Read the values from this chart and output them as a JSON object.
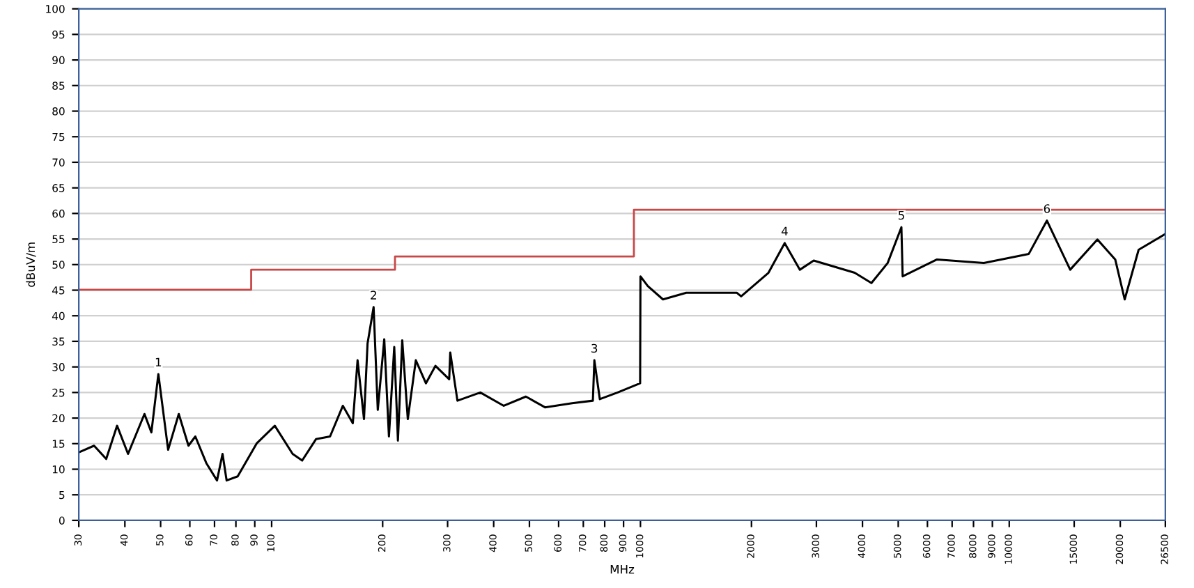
{
  "chart_data": {
    "type": "line",
    "xlabel": "MHz",
    "ylabel": "dBuV/m",
    "log": "x",
    "grid": "y",
    "legend": false,
    "marker": "none",
    "line_style": "solid",
    "xlim": [
      30,
      26500
    ],
    "ylim": [
      0,
      100
    ],
    "xticks": [
      30,
      40,
      50,
      60,
      70,
      80,
      90,
      100,
      200,
      300,
      400,
      500,
      600,
      700,
      800,
      900,
      1000,
      2000,
      3000,
      4000,
      5000,
      6000,
      7000,
      8000,
      9000,
      10000,
      15000,
      20000,
      26500
    ],
    "yticks": [
      0,
      5,
      10,
      15,
      20,
      25,
      30,
      35,
      40,
      45,
      50,
      55,
      60,
      65,
      70,
      75,
      80,
      85,
      90,
      95,
      100
    ],
    "series": [
      {
        "type": "step",
        "color": "#c84848",
        "x": [
          30,
          88,
          216,
          960,
          26500
        ],
        "values": [
          45.1,
          49.0,
          51.6,
          60.7,
          60.7
        ]
      },
      {
        "color": "#000000",
        "x": [
          30,
          33,
          35.6,
          38.1,
          40.8,
          45.2,
          47.2,
          49.3,
          52.4,
          56.0,
          59.5,
          62.1,
          66.5,
          71.1,
          73.6,
          75.5,
          80.9,
          91.2,
          102,
          114,
          121,
          132,
          144,
          156,
          166,
          171,
          178,
          182,
          189,
          194,
          202,
          208,
          215,
          220,
          226,
          234,
          246,
          262,
          278,
          303,
          305,
          319,
          368,
          426,
          489,
          551,
          653,
          743,
          750,
          776,
          867,
          998,
          1000,
          1047,
          1151,
          1331,
          1824,
          1875,
          2224,
          2461,
          2706,
          2950,
          3810,
          4230,
          4680,
          5100,
          5140,
          6370,
          8530,
          11300,
          12650,
          14630,
          17340,
          19380,
          20560,
          22430,
          26500
        ],
        "values": [
          13.3,
          14.6,
          12.0,
          18.5,
          13.0,
          20.8,
          17.2,
          28.6,
          13.8,
          20.8,
          14.6,
          16.4,
          11.2,
          7.8,
          13.0,
          7.8,
          8.6,
          15.1,
          18.5,
          13.0,
          11.7,
          15.9,
          16.4,
          22.4,
          19.0,
          31.3,
          19.8,
          34.6,
          41.7,
          21.6,
          35.4,
          16.4,
          33.9,
          15.6,
          35.2,
          19.8,
          31.3,
          26.8,
          30.2,
          27.6,
          32.8,
          23.4,
          25.0,
          22.4,
          24.2,
          22.1,
          22.9,
          23.4,
          31.3,
          23.7,
          25.0,
          26.8,
          47.7,
          45.8,
          43.2,
          44.5,
          44.5,
          43.8,
          48.4,
          54.2,
          49.0,
          50.8,
          48.4,
          46.4,
          50.3,
          57.3,
          47.7,
          51.0,
          50.3,
          52.1,
          58.6,
          49.0,
          54.9,
          51.0,
          43.2,
          52.9,
          56.0
        ]
      }
    ],
    "annotations": [
      {
        "text": "1",
        "x": 49.3,
        "y": 28.6
      },
      {
        "text": "2",
        "x": 189,
        "y": 41.7
      },
      {
        "text": "3",
        "x": 750,
        "y": 31.3
      },
      {
        "text": "4",
        "x": 2461,
        "y": 54.2
      },
      {
        "text": "5",
        "x": 5100,
        "y": 57.3
      },
      {
        "text": "6",
        "x": 12650,
        "y": 58.6
      }
    ]
  }
}
